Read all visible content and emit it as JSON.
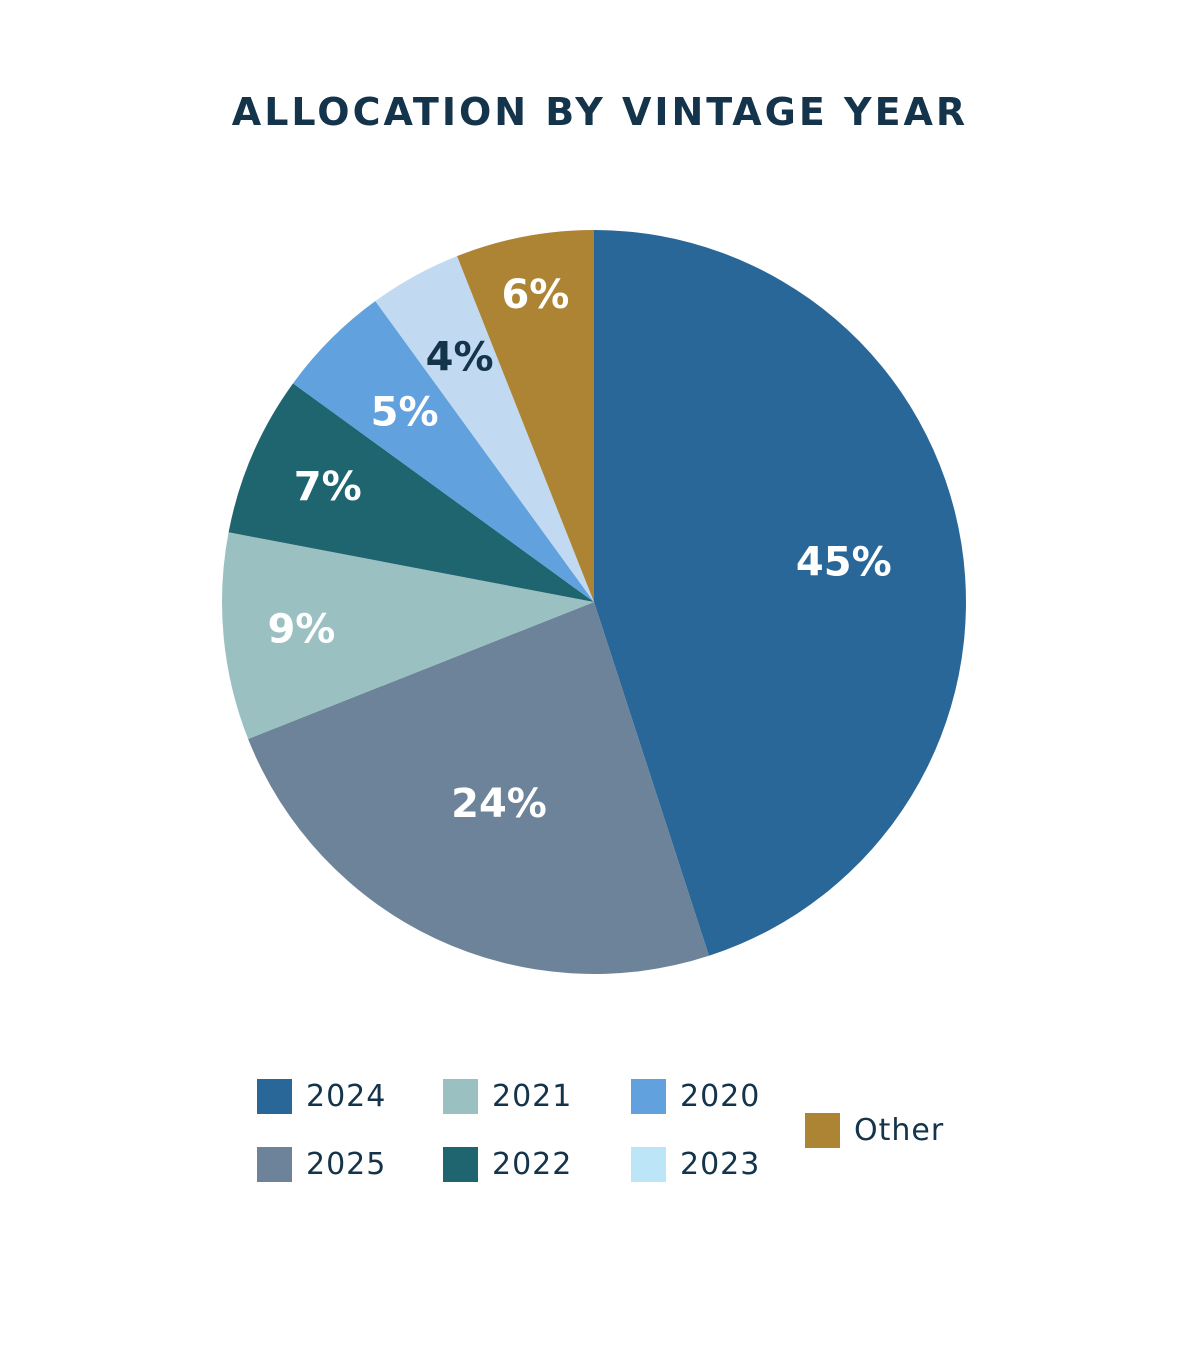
{
  "title": "ALLOCATION BY VINTAGE YEAR",
  "chart_data": {
    "type": "pie",
    "title": "ALLOCATION BY VINTAGE YEAR",
    "start": "12 o'clock",
    "direction": "clockwise",
    "slices": [
      {
        "label": "2024",
        "value": 45,
        "display": "45%",
        "color": "#2a6799",
        "label_color": "#ffffff"
      },
      {
        "label": "2025",
        "value": 24,
        "display": "24%",
        "color": "#6d8399",
        "label_color": "#ffffff"
      },
      {
        "label": "2021",
        "value": 9,
        "display": "9%",
        "color": "#9bc0c2",
        "label_color": "#ffffff"
      },
      {
        "label": "2022",
        "value": 7,
        "display": "7%",
        "color": "#1e6570",
        "label_color": "#ffffff"
      },
      {
        "label": "2020",
        "value": 5,
        "display": "5%",
        "color": "#61a1dd",
        "label_color": "#ffffff"
      },
      {
        "label": "2023",
        "value": 4,
        "display": "4%",
        "color": "#c1d9f1",
        "label_color": "#13344a"
      },
      {
        "label": "Other",
        "value": 6,
        "display": "6%",
        "color": "#ac8434",
        "label_color": "#ffffff"
      }
    ],
    "legend": {
      "placement": "bottom",
      "items": [
        {
          "label": "2024",
          "color": "#2a6799"
        },
        {
          "label": "2021",
          "color": "#9bc0c2"
        },
        {
          "label": "2020",
          "color": "#61a1dd"
        },
        {
          "label": "2025",
          "color": "#6d8399"
        },
        {
          "label": "2022",
          "color": "#1e6570"
        },
        {
          "label": "2023",
          "color": "#bce6f7"
        },
        {
          "label": "Other",
          "color": "#ac8434"
        }
      ]
    }
  }
}
